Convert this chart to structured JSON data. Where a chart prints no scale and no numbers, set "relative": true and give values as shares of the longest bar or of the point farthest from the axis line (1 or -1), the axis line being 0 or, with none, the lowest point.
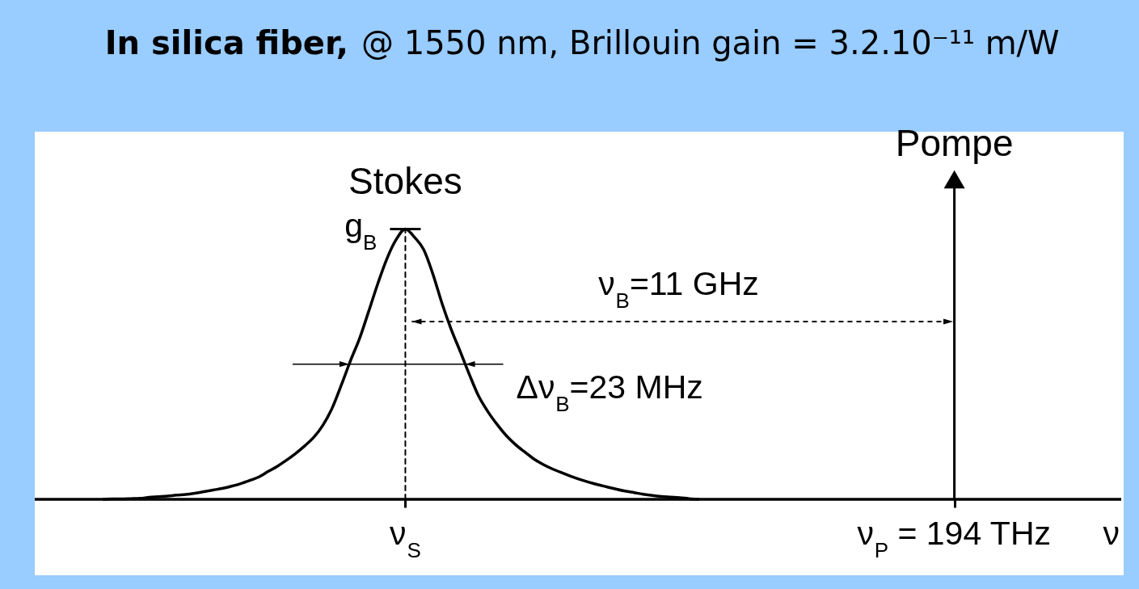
{
  "chart_data": {
    "type": "line",
    "relative": true,
    "title": "In silica fiber,",
    "subtitle": "@ 1550 nm, Brillouin gain = 3.2.10⁻¹¹ m/W",
    "xlabel": "ν",
    "tick_labels": "x",
    "categories": [
      null,
      null,
      null,
      null,
      null,
      null,
      null,
      null,
      null,
      null,
      null,
      null,
      null,
      null,
      null,
      null,
      null,
      null,
      null,
      null,
      null,
      null,
      null,
      null,
      null,
      null,
      null,
      null,
      null,
      null,
      null,
      null,
      null,
      null,
      null,
      null,
      null,
      null,
      null,
      null,
      "ν$_{S}$",
      null,
      null,
      null,
      null,
      null,
      null,
      null,
      null,
      null,
      null,
      null,
      null,
      null,
      null,
      null,
      null,
      null,
      null,
      null,
      null,
      null,
      null,
      null,
      null,
      null,
      null,
      null,
      null,
      null,
      null,
      null,
      null,
      null,
      null,
      null,
      null,
      null,
      null,
      null,
      null,
      null,
      null,
      null,
      null,
      null,
      null,
      null,
      null,
      null,
      null,
      null,
      null,
      null,
      null,
      null,
      null,
      null,
      null,
      null,
      "ν$_{P}$ = 194 THz",
      null,
      null,
      null,
      null,
      null,
      null,
      null,
      null,
      null,
      null,
      null,
      null,
      null,
      null,
      null,
      null,
      null,
      null
    ],
    "series": [
      {
        "name": "Stokes",
        "color": "#000000",
        "values": [
          null,
          null,
          null,
          null,
          null,
          null,
          null,
          0,
          0.001,
          0.001,
          0.002,
          0.003,
          0.006,
          0.008,
          0.01,
          0.013,
          0.015,
          0.019,
          0.024,
          0.029,
          0.034,
          0.041,
          0.049,
          0.059,
          0.07,
          0.087,
          0.103,
          0.122,
          0.143,
          0.167,
          0.194,
          0.232,
          0.285,
          0.357,
          0.433,
          0.503,
          0.588,
          0.675,
          0.753,
          0.812,
          0.845,
          0.819,
          0.781,
          0.705,
          0.613,
          0.532,
          0.462,
          0.39,
          0.323,
          0.275,
          0.235,
          0.2,
          0.172,
          0.149,
          0.127,
          0.11,
          0.096,
          0.084,
          0.073,
          0.063,
          0.054,
          0.046,
          0.039,
          0.032,
          0.026,
          0.021,
          0.016,
          0.012,
          0.009,
          0.007,
          0.005,
          0.002,
          0,
          null,
          null,
          null,
          null,
          null,
          null,
          null,
          null,
          null,
          null,
          null,
          null,
          null,
          null,
          null,
          null,
          null,
          null,
          null,
          null,
          null,
          null,
          null,
          null,
          null,
          null,
          null,
          null,
          null,
          null,
          null,
          null,
          null,
          null,
          null,
          null,
          null,
          null,
          null,
          null,
          null,
          null,
          null,
          null,
          null,
          null
        ]
      },
      {
        "color": "#000000",
        "line_style": "dashed",
        "x": [
          "ν$_{S}$",
          "ν$_{S}$"
        ],
        "values": [
          0,
          0.845
        ]
      },
      {
        "name": "Pompe",
        "type": "lollipop",
        "marker": "triangle",
        "color": "#000000",
        "values": [
          null,
          null,
          null,
          null,
          null,
          null,
          null,
          null,
          null,
          null,
          null,
          null,
          null,
          null,
          null,
          null,
          null,
          null,
          null,
          null,
          null,
          null,
          null,
          null,
          null,
          null,
          null,
          null,
          null,
          null,
          null,
          null,
          null,
          null,
          null,
          null,
          null,
          null,
          null,
          null,
          null,
          null,
          null,
          null,
          null,
          null,
          null,
          null,
          null,
          null,
          null,
          null,
          null,
          null,
          null,
          null,
          null,
          null,
          null,
          null,
          null,
          null,
          null,
          null,
          null,
          null,
          null,
          null,
          null,
          null,
          null,
          null,
          null,
          null,
          null,
          null,
          null,
          null,
          null,
          null,
          null,
          null,
          null,
          null,
          null,
          null,
          null,
          null,
          null,
          null,
          null,
          null,
          null,
          null,
          null,
          null,
          null,
          null,
          null,
          null,
          1,
          null,
          null,
          null,
          null,
          null,
          null,
          null,
          null,
          null,
          null,
          null,
          null,
          null,
          null,
          null,
          null,
          null,
          null
        ]
      }
    ],
    "annotations": [
      {
        "text": "g$_{B}$",
        "x": "ν$_{S}$",
        "y": 0.845
      },
      "ν$_{B}$=11 GHz",
      "Δν$_{B}$=23 MHz"
    ]
  }
}
